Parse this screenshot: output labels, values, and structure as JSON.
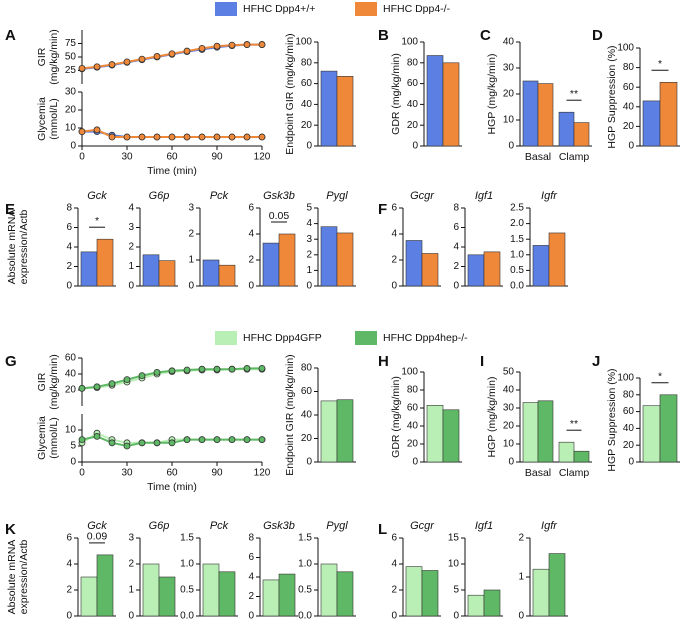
{
  "legends": [
    [
      {
        "name": "HFHC Dpp4+/+",
        "color": "#5b7fe3"
      },
      {
        "name": "HFHC Dpp4-/-",
        "color": "#f0883a"
      }
    ],
    [
      {
        "name": "HFHC Dpp4GFP",
        "color": "#b9efb4"
      },
      {
        "name": "HFHC Dpp4hep-/-",
        "color": "#5fb865"
      }
    ]
  ],
  "mrna_ylabels": [
    [
      "Absolute mRNA",
      "expression/Actb"
    ],
    [
      "Absolute mRNA",
      "expression/Actb"
    ]
  ],
  "chart_data": [
    {
      "type": "line",
      "panel": "A",
      "xlabel": "Time (min)",
      "x": [
        0,
        10,
        20,
        30,
        40,
        50,
        60,
        70,
        80,
        90,
        100,
        110,
        120
      ],
      "xlim": [
        0,
        120
      ],
      "xticks": [
        0,
        30,
        60,
        90,
        120
      ],
      "subplots": [
        {
          "ylabel": [
            "GIR",
            "(mg/kg/min)"
          ],
          "ylim": [
            0,
            100
          ],
          "yticks": [
            25,
            50,
            75
          ],
          "series": [
            {
              "color": "#5b7fe3",
              "values": [
                28,
                31,
                35,
                40,
                45,
                50,
                55,
                60,
                64,
                68,
                71,
                73,
                73
              ]
            },
            {
              "color": "#f0883a",
              "values": [
                29,
                32,
                36,
                41,
                46,
                51,
                56,
                61,
                66,
                70,
                72,
                73,
                73
              ]
            }
          ]
        },
        {
          "ylabel": [
            "Glycemia",
            "(mmol/L)"
          ],
          "ylim": [
            0,
            30
          ],
          "yticks": [
            0,
            10,
            20,
            30
          ],
          "series": [
            {
              "color": "#5b7fe3",
              "values": [
                8,
                8,
                6,
                5,
                5,
                5,
                5,
                5,
                5,
                5,
                5,
                5,
                5
              ]
            },
            {
              "color": "#f0883a",
              "values": [
                8,
                9,
                5,
                5,
                5,
                5,
                5,
                5,
                5,
                5,
                5,
                5,
                5
              ]
            }
          ]
        }
      ]
    },
    {
      "type": "bar",
      "ylabel": "Endpoint GIR (mg/kg/min)",
      "ylim": [
        0,
        100
      ],
      "yticks": [
        0,
        20,
        40,
        60,
        80,
        100
      ],
      "series": [
        {
          "color": "#5b7fe3",
          "values": [
            72
          ]
        },
        {
          "color": "#f0883a",
          "values": [
            67
          ]
        }
      ]
    },
    {
      "type": "bar",
      "panel": "B",
      "ylabel": "GDR (mg/kg/min)",
      "ylim": [
        0,
        100
      ],
      "yticks": [
        0,
        20,
        40,
        60,
        80,
        100
      ],
      "series": [
        {
          "color": "#5b7fe3",
          "values": [
            87
          ]
        },
        {
          "color": "#f0883a",
          "values": [
            80
          ]
        }
      ]
    },
    {
      "type": "bar",
      "panel": "C",
      "ylabel": "HGP (mg/kg/min)",
      "ylim": [
        0,
        40
      ],
      "yticks": [
        0,
        10,
        20,
        30,
        40
      ],
      "categories": [
        "Basal",
        "Clamp"
      ],
      "significance": "**",
      "series": [
        {
          "color": "#5b7fe3",
          "values": [
            25,
            13
          ]
        },
        {
          "color": "#f0883a",
          "values": [
            24,
            9
          ]
        }
      ]
    },
    {
      "type": "bar",
      "panel": "D",
      "ylabel": "HGP Suppression (%)",
      "ylim": [
        0,
        100
      ],
      "yticks": [
        0,
        20,
        40,
        60,
        80,
        100
      ],
      "significance": "*",
      "series": [
        {
          "color": "#5b7fe3",
          "values": [
            46
          ]
        },
        {
          "color": "#f0883a",
          "values": [
            65
          ]
        }
      ]
    },
    {
      "type": "bar",
      "panel": "E",
      "title": "Gck",
      "ylim": [
        0,
        8
      ],
      "yticks": [
        0,
        2,
        4,
        6,
        8
      ],
      "significance": "*",
      "series": [
        {
          "color": "#5b7fe3",
          "values": [
            3.5
          ]
        },
        {
          "color": "#f0883a",
          "values": [
            4.8
          ]
        }
      ]
    },
    {
      "type": "bar",
      "title": "G6p",
      "ylim": [
        0,
        4
      ],
      "yticks": [
        0,
        1,
        2,
        3,
        4
      ],
      "series": [
        {
          "color": "#5b7fe3",
          "values": [
            1.6
          ]
        },
        {
          "color": "#f0883a",
          "values": [
            1.3
          ]
        }
      ]
    },
    {
      "type": "bar",
      "title": "Pck",
      "ylim": [
        0,
        3
      ],
      "yticks": [
        0,
        1,
        2,
        3
      ],
      "series": [
        {
          "color": "#5b7fe3",
          "values": [
            1.0
          ]
        },
        {
          "color": "#f0883a",
          "values": [
            0.8
          ]
        }
      ]
    },
    {
      "type": "bar",
      "title": "Gsk3b",
      "ylim": [
        0,
        6
      ],
      "yticks": [
        0,
        2,
        4,
        6
      ],
      "significance": "0.05",
      "series": [
        {
          "color": "#5b7fe3",
          "values": [
            3.3
          ]
        },
        {
          "color": "#f0883a",
          "values": [
            4.0
          ]
        }
      ]
    },
    {
      "type": "bar",
      "title": "Pygl",
      "ylim": [
        0,
        5
      ],
      "yticks": [
        0,
        1,
        2,
        3,
        4,
        5
      ],
      "series": [
        {
          "color": "#5b7fe3",
          "values": [
            3.8
          ]
        },
        {
          "color": "#f0883a",
          "values": [
            3.4
          ]
        }
      ]
    },
    {
      "type": "bar",
      "panel": "F",
      "title": "Gcgr",
      "ylim": [
        0,
        6
      ],
      "yticks": [
        0,
        2,
        4,
        6
      ],
      "series": [
        {
          "color": "#5b7fe3",
          "values": [
            3.5
          ]
        },
        {
          "color": "#f0883a",
          "values": [
            2.5
          ]
        }
      ]
    },
    {
      "type": "bar",
      "title": "Igf1",
      "ylim": [
        0,
        8
      ],
      "yticks": [
        0,
        2,
        4,
        6,
        8
      ],
      "series": [
        {
          "color": "#5b7fe3",
          "values": [
            3.2
          ]
        },
        {
          "color": "#f0883a",
          "values": [
            3.5
          ]
        }
      ]
    },
    {
      "type": "bar",
      "title": "Igfr",
      "ylim": [
        0,
        2.5
      ],
      "yticks": [
        {
          "value": 0,
          "label": "0.0"
        },
        {
          "value": 0.5,
          "label": "0.5"
        },
        {
          "value": 1,
          "label": "1.0"
        },
        {
          "value": 1.5,
          "label": "1.5"
        },
        {
          "value": 2,
          "label": "2.0"
        },
        {
          "value": 2.5,
          "label": "2.5"
        }
      ],
      "series": [
        {
          "color": "#5b7fe3",
          "values": [
            1.3
          ]
        },
        {
          "color": "#f0883a",
          "values": [
            1.7
          ]
        }
      ]
    },
    {
      "type": "line",
      "panel": "G",
      "xlabel": "Time (min)",
      "x": [
        0,
        10,
        20,
        30,
        40,
        50,
        60,
        70,
        80,
        90,
        100,
        110,
        120
      ],
      "xlim": [
        0,
        120
      ],
      "xticks": [
        0,
        30,
        60,
        90,
        120
      ],
      "subplots": [
        {
          "ylabel": [
            "GIR",
            "(mg/kg/min)"
          ],
          "ylim": [
            0,
            60
          ],
          "yticks": [
            20,
            40,
            60
          ],
          "series": [
            {
              "color": "#b9efb4",
              "values": [
                22,
                23,
                26,
                30,
                35,
                40,
                43,
                44,
                45,
                45,
                46,
                46,
                46
              ]
            },
            {
              "color": "#5fb865",
              "values": [
                22,
                24,
                28,
                33,
                38,
                42,
                44,
                45,
                46,
                46,
                46,
                47,
                47
              ]
            }
          ]
        },
        {
          "ylabel": [
            "Glycemia",
            "(mmol/L)"
          ],
          "ylim": [
            0,
            15
          ],
          "yticks": [
            0,
            5,
            10
          ],
          "series": [
            {
              "color": "#b9efb4",
              "values": [
                6,
                9,
                7,
                6,
                6,
                6,
                7,
                7,
                7,
                7,
                7,
                7,
                7
              ]
            },
            {
              "color": "#5fb865",
              "values": [
                7,
                8,
                6,
                5,
                6,
                6,
                6,
                7,
                7,
                7,
                7,
                7,
                7
              ]
            }
          ]
        }
      ]
    },
    {
      "type": "bar",
      "ylabel": "Endpoint GIR (mg/kg/min)",
      "ylim": [
        0,
        80
      ],
      "yticks": [
        0,
        20,
        40,
        60,
        80
      ],
      "series": [
        {
          "color": "#b9efb4",
          "values": [
            52
          ]
        },
        {
          "color": "#5fb865",
          "values": [
            53
          ]
        }
      ]
    },
    {
      "type": "bar",
      "panel": "H",
      "ylabel": "GDR (mg/kg/min)",
      "ylim": [
        0,
        100
      ],
      "yticks": [
        0,
        20,
        40,
        60,
        80,
        100
      ],
      "series": [
        {
          "color": "#b9efb4",
          "values": [
            63
          ]
        },
        {
          "color": "#5fb865",
          "values": [
            58
          ]
        }
      ]
    },
    {
      "type": "bar",
      "panel": "I",
      "ylabel": "HGP (mg/kg/min)",
      "ylim": [
        0,
        50
      ],
      "yticks": [
        0,
        10,
        20,
        30,
        40,
        50
      ],
      "categories": [
        "Basal",
        "Clamp"
      ],
      "significance": "**",
      "series": [
        {
          "color": "#b9efb4",
          "values": [
            33,
            11
          ]
        },
        {
          "color": "#5fb865",
          "values": [
            34,
            6
          ]
        }
      ]
    },
    {
      "type": "bar",
      "panel": "J",
      "ylabel": "HGP Suppression (%)",
      "ylim": [
        0,
        100
      ],
      "yticks": [
        0,
        20,
        40,
        60,
        80,
        100
      ],
      "significance": "*",
      "series": [
        {
          "color": "#b9efb4",
          "values": [
            67
          ]
        },
        {
          "color": "#5fb865",
          "values": [
            80
          ]
        }
      ]
    },
    {
      "type": "bar",
      "panel": "K",
      "title": "Gck",
      "ylim": [
        0,
        6
      ],
      "yticks": [
        0,
        2,
        4,
        6
      ],
      "significance": "0.09",
      "series": [
        {
          "color": "#b9efb4",
          "values": [
            3.0
          ]
        },
        {
          "color": "#5fb865",
          "values": [
            4.7
          ]
        }
      ]
    },
    {
      "type": "bar",
      "title": "G6p",
      "ylim": [
        0,
        3
      ],
      "yticks": [
        0,
        1,
        2,
        3
      ],
      "series": [
        {
          "color": "#b9efb4",
          "values": [
            2.0
          ]
        },
        {
          "color": "#5fb865",
          "values": [
            1.5
          ]
        }
      ]
    },
    {
      "type": "bar",
      "title": "Pck",
      "ylim": [
        0,
        1.5
      ],
      "yticks": [
        {
          "value": 0,
          "label": "0.0"
        },
        {
          "value": 0.5,
          "label": "0.5"
        },
        {
          "value": 1,
          "label": "1.0"
        },
        {
          "value": 1.5,
          "label": "1.5"
        }
      ],
      "series": [
        {
          "color": "#b9efb4",
          "values": [
            1.0
          ]
        },
        {
          "color": "#5fb865",
          "values": [
            0.85
          ]
        }
      ]
    },
    {
      "type": "bar",
      "title": "Gsk3b",
      "ylim": [
        0,
        8
      ],
      "yticks": [
        0,
        2,
        4,
        6,
        8
      ],
      "series": [
        {
          "color": "#b9efb4",
          "values": [
            3.7
          ]
        },
        {
          "color": "#5fb865",
          "values": [
            4.3
          ]
        }
      ]
    },
    {
      "type": "bar",
      "title": "Pygl",
      "ylim": [
        0,
        1.5
      ],
      "yticks": [
        {
          "value": 0,
          "label": "0.0"
        },
        {
          "value": 0.5,
          "label": "0.5"
        },
        {
          "value": 1,
          "label": "1.0"
        },
        {
          "value": 1.5,
          "label": "1.5"
        }
      ],
      "series": [
        {
          "color": "#b9efb4",
          "values": [
            1.0
          ]
        },
        {
          "color": "#5fb865",
          "values": [
            0.85
          ]
        }
      ]
    },
    {
      "type": "bar",
      "panel": "L",
      "title": "Gcgr",
      "ylim": [
        0,
        6
      ],
      "yticks": [
        0,
        2,
        4,
        6
      ],
      "series": [
        {
          "color": "#b9efb4",
          "values": [
            3.8
          ]
        },
        {
          "color": "#5fb865",
          "values": [
            3.5
          ]
        }
      ]
    },
    {
      "type": "bar",
      "title": "Igf1",
      "ylim": [
        0,
        15
      ],
      "yticks": [
        0,
        5,
        10,
        15
      ],
      "series": [
        {
          "color": "#b9efb4",
          "values": [
            4
          ]
        },
        {
          "color": "#5fb865",
          "values": [
            5
          ]
        }
      ]
    },
    {
      "type": "bar",
      "title": "Igfr",
      "ylim": [
        0,
        2
      ],
      "yticks": [
        0,
        1,
        2
      ],
      "series": [
        {
          "color": "#b9efb4",
          "values": [
            1.2
          ]
        },
        {
          "color": "#5fb865",
          "values": [
            1.6
          ]
        }
      ]
    }
  ]
}
